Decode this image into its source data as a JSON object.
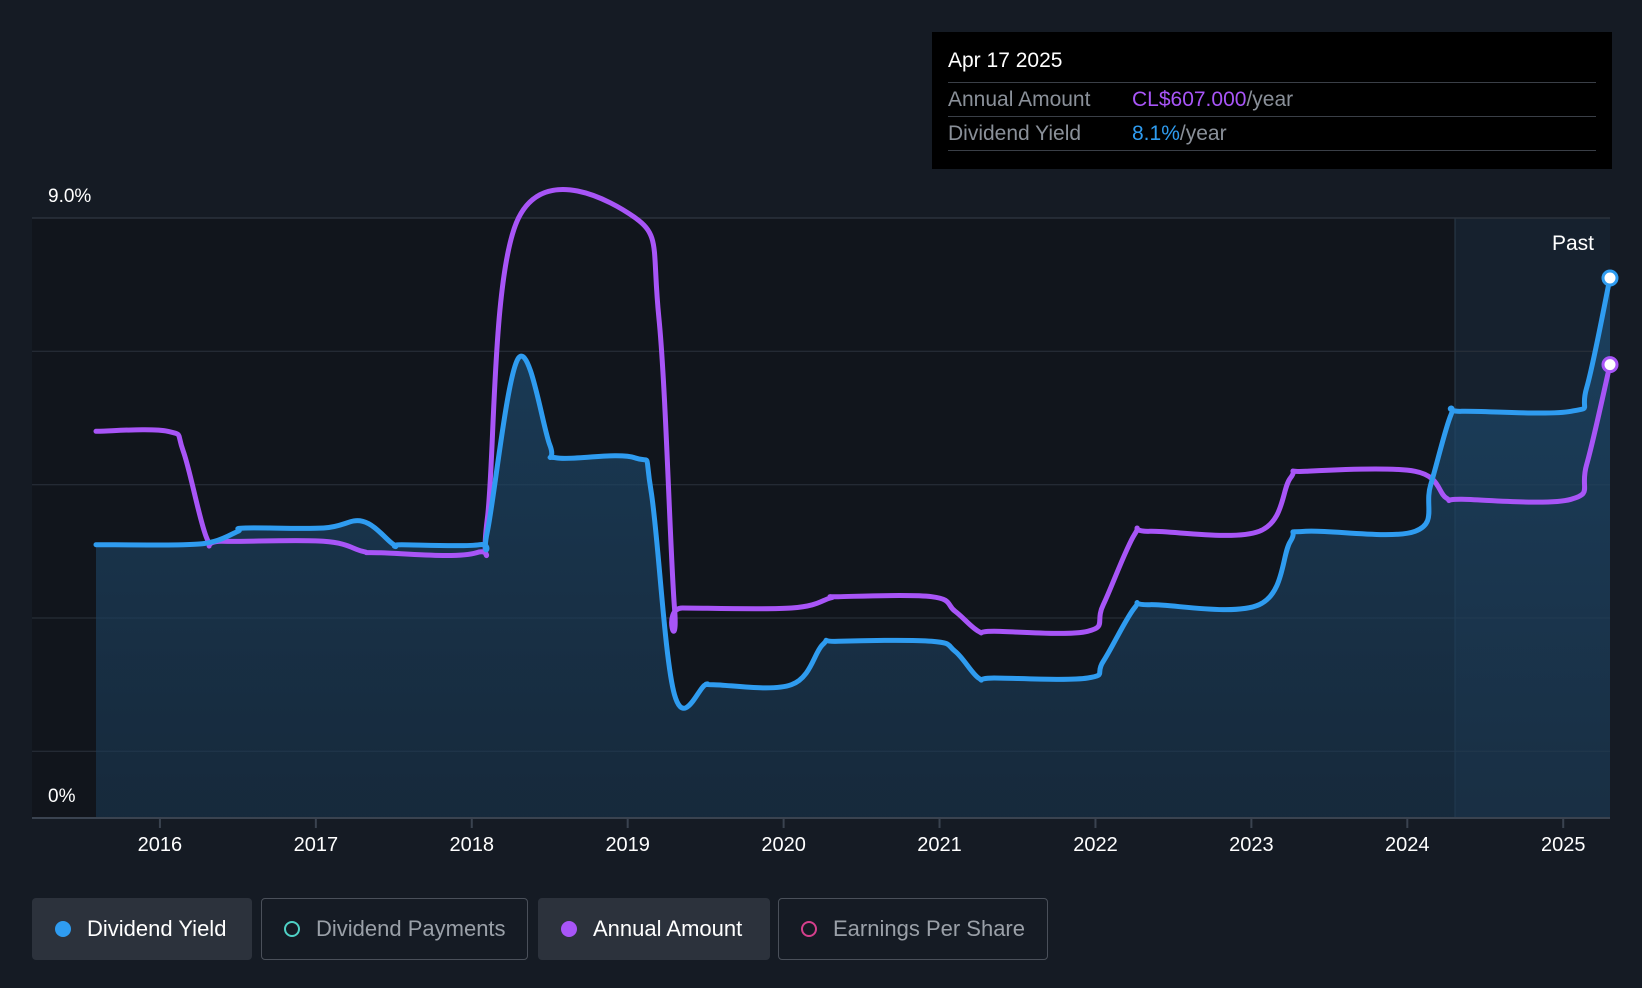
{
  "tooltip": {
    "date": "Apr 17 2025",
    "annual_amount_label": "Annual Amount",
    "annual_amount_value": "CL$607.000",
    "dividend_yield_label": "Dividend Yield",
    "dividend_yield_value": "8.1%",
    "unit": "/year"
  },
  "past_label": "Past",
  "legend": [
    {
      "label": "Dividend Yield",
      "color": "#2f9cf0",
      "active": true,
      "filled": true
    },
    {
      "label": "Dividend Payments",
      "color": "#4fd1c5",
      "active": false,
      "filled": false
    },
    {
      "label": "Annual Amount",
      "color": "#a855f7",
      "active": true,
      "filled": true
    },
    {
      "label": "Earnings Per Share",
      "color": "#d53f8c",
      "active": false,
      "filled": false
    }
  ],
  "colors": {
    "dividend_yield": "#2f9cf0",
    "annual_amount": "#a855f7",
    "background": "#151b24"
  },
  "chart_data": {
    "type": "line",
    "x_tick_labels": [
      "2016",
      "2017",
      "2018",
      "2019",
      "2020",
      "2021",
      "2022",
      "2023",
      "2024",
      "2025"
    ],
    "y_tick_labels": [
      "9.0%",
      "0%"
    ],
    "xlim": [
      2015.59,
      2025.3
    ],
    "ylim": [
      0,
      9.0
    ],
    "grid": true,
    "series": [
      {
        "name": "Dividend Yield",
        "unit": "%",
        "area_fill": true,
        "points": [
          [
            2015.59,
            4.1
          ],
          [
            2016.15,
            4.1
          ],
          [
            2016.35,
            4.15
          ],
          [
            2016.5,
            4.3
          ],
          [
            2016.55,
            4.35
          ],
          [
            2017.05,
            4.35
          ],
          [
            2017.3,
            4.45
          ],
          [
            2017.5,
            4.1
          ],
          [
            2017.55,
            4.1
          ],
          [
            2018.05,
            4.1
          ],
          [
            2018.1,
            4.3
          ],
          [
            2018.3,
            6.9
          ],
          [
            2018.5,
            5.6
          ],
          [
            2018.55,
            5.4
          ],
          [
            2019.05,
            5.4
          ],
          [
            2019.15,
            4.9
          ],
          [
            2019.3,
            1.85
          ],
          [
            2019.5,
            2.0
          ],
          [
            2019.55,
            2.0
          ],
          [
            2020.05,
            2.0
          ],
          [
            2020.25,
            2.6
          ],
          [
            2020.35,
            2.65
          ],
          [
            2020.95,
            2.65
          ],
          [
            2021.1,
            2.5
          ],
          [
            2021.25,
            2.1
          ],
          [
            2021.35,
            2.1
          ],
          [
            2021.95,
            2.1
          ],
          [
            2022.05,
            2.35
          ],
          [
            2022.25,
            3.15
          ],
          [
            2022.35,
            3.2
          ],
          [
            2023.05,
            3.2
          ],
          [
            2023.25,
            4.15
          ],
          [
            2023.35,
            4.3
          ],
          [
            2024.05,
            4.3
          ],
          [
            2024.15,
            5.0
          ],
          [
            2024.28,
            6.05
          ],
          [
            2024.35,
            6.1
          ],
          [
            2025.05,
            6.1
          ],
          [
            2025.15,
            6.45
          ],
          [
            2025.3,
            8.1
          ]
        ]
      },
      {
        "name": "Annual Amount",
        "area_fill": false,
        "points": [
          [
            2015.59,
            5.8
          ],
          [
            2016.05,
            5.8
          ],
          [
            2016.15,
            5.5
          ],
          [
            2016.3,
            4.2
          ],
          [
            2016.4,
            4.15
          ],
          [
            2017.05,
            4.15
          ],
          [
            2017.3,
            4.0
          ],
          [
            2017.4,
            3.98
          ],
          [
            2018.03,
            3.98
          ],
          [
            2018.1,
            4.5
          ],
          [
            2018.3,
            9.0
          ],
          [
            2019.05,
            9.0
          ],
          [
            2019.2,
            7.5
          ],
          [
            2019.3,
            3.15
          ],
          [
            2019.35,
            3.15
          ],
          [
            2020.05,
            3.15
          ],
          [
            2020.3,
            3.3
          ],
          [
            2020.35,
            3.32
          ],
          [
            2020.95,
            3.32
          ],
          [
            2021.1,
            3.1
          ],
          [
            2021.25,
            2.8
          ],
          [
            2021.35,
            2.8
          ],
          [
            2021.95,
            2.8
          ],
          [
            2022.05,
            3.2
          ],
          [
            2022.25,
            4.25
          ],
          [
            2022.35,
            4.3
          ],
          [
            2023.05,
            4.3
          ],
          [
            2023.25,
            5.1
          ],
          [
            2023.35,
            5.2
          ],
          [
            2024.05,
            5.2
          ],
          [
            2024.25,
            4.8
          ],
          [
            2024.35,
            4.78
          ],
          [
            2025.05,
            4.78
          ],
          [
            2025.15,
            5.3
          ],
          [
            2025.3,
            6.8
          ]
        ]
      }
    ]
  }
}
